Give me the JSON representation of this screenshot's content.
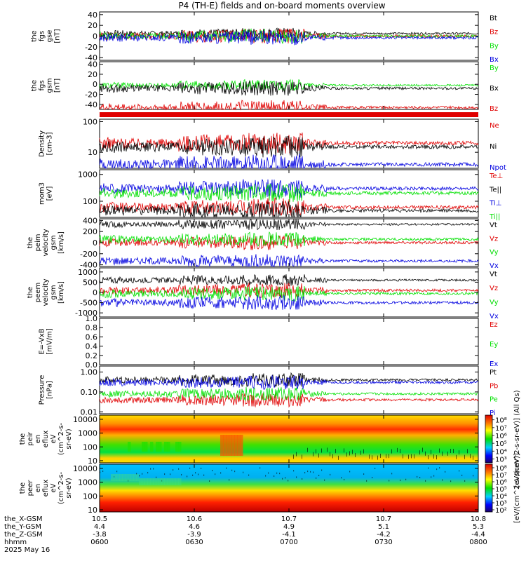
{
  "title": "P4 (TH-E) fields and on-board moments overview",
  "date_label": "2025 May 16",
  "colors": {
    "black": "#000000",
    "red": "#e00000",
    "green": "#00e000",
    "blue": "#0000e0"
  },
  "chart_data": [
    {
      "type": "line",
      "ylabel": [
        "the",
        "fgs",
        "gse",
        "[nT]"
      ],
      "ylim": [
        -45,
        45
      ],
      "ticks": [
        "40",
        "20",
        "0",
        "-20",
        "-40"
      ],
      "tick_values": [
        40,
        20,
        0,
        -20,
        -40
      ],
      "series": [
        {
          "name": "Bt",
          "color": "black",
          "base": 5
        },
        {
          "name": "Bz",
          "color": "red",
          "base": 0
        },
        {
          "name": "By",
          "color": "green",
          "base": 0
        },
        {
          "name": "Bx",
          "color": "blue",
          "base": -3
        }
      ]
    },
    {
      "type": "line",
      "ylabel": [
        "the",
        "fgs",
        "gsm",
        "[nT]"
      ],
      "ylim": [
        -50,
        45
      ],
      "ticks": [
        "40",
        "20",
        "0",
        "-20",
        "-40"
      ],
      "tick_values": [
        40,
        20,
        0,
        -20,
        -40
      ],
      "series": [
        {
          "name": "By",
          "color": "green",
          "base": -2
        },
        {
          "name": "Bx",
          "color": "black",
          "base": -8
        },
        {
          "name": "Bz",
          "color": "red",
          "base": -46
        }
      ]
    },
    {
      "type": "line",
      "ylabel": [
        "Density",
        "[cm-3]"
      ],
      "scale": "log",
      "ylim": [
        3,
        120
      ],
      "ticks": [
        "100",
        "10"
      ],
      "tick_values": [
        100,
        10
      ],
      "series": [
        {
          "name": "Ne",
          "color": "red",
          "base": 20
        },
        {
          "name": "Ni",
          "color": "black",
          "base": 15
        },
        {
          "name": "Npot",
          "color": "blue",
          "base": 4
        }
      ]
    },
    {
      "type": "line",
      "ylabel": [
        "mom3",
        "[eV]"
      ],
      "scale": "log",
      "ylim": [
        25,
        1500
      ],
      "ticks": [
        "1000",
        "100"
      ],
      "tick_values": [
        1000,
        100
      ],
      "series": [
        {
          "name": "Te⊥",
          "color": "red",
          "base": 60
        },
        {
          "name": "Te||",
          "color": "black",
          "base": 45
        },
        {
          "name": "Ti⊥",
          "color": "blue",
          "base": 300
        },
        {
          "name": "Ti||",
          "color": "green",
          "base": 200
        }
      ]
    },
    {
      "type": "line",
      "ylabel": [
        "the",
        "peim",
        "velocity",
        "gsm",
        "[km/s]"
      ],
      "ylim": [
        -430,
        430
      ],
      "ticks": [
        "400",
        "200",
        "0",
        "-200",
        "-400"
      ],
      "tick_values": [
        400,
        200,
        0,
        -200,
        -400
      ],
      "series": [
        {
          "name": "Vt",
          "color": "black",
          "base": 330
        },
        {
          "name": "Vz",
          "color": "red",
          "base": 0
        },
        {
          "name": "Vy",
          "color": "green",
          "base": 60
        },
        {
          "name": "Vx",
          "color": "blue",
          "base": -330
        }
      ]
    },
    {
      "type": "line",
      "ylabel": [
        "the",
        "peem",
        "velocity",
        "gsm",
        "[km/s]"
      ],
      "ylim": [
        -1200,
        1200
      ],
      "ticks": [
        "1000",
        "500",
        "0",
        "-500",
        "-1000"
      ],
      "tick_values": [
        1000,
        500,
        0,
        -500,
        -1000
      ],
      "series": [
        {
          "name": "Vt",
          "color": "black",
          "base": 600
        },
        {
          "name": "Vz",
          "color": "red",
          "base": 100
        },
        {
          "name": "Vy",
          "color": "green",
          "base": -50
        },
        {
          "name": "Vx",
          "color": "blue",
          "base": -500
        }
      ]
    },
    {
      "type": "line",
      "ylabel": [
        "E=-VxB",
        "[mV/m]"
      ],
      "ylim": [
        0,
        1
      ],
      "ticks": [
        "1.0",
        "0.8",
        "0.6",
        "0.4",
        "0.2",
        "0.0"
      ],
      "tick_values": [
        1,
        0.8,
        0.6,
        0.4,
        0.2,
        0
      ],
      "series": [
        {
          "name": "Ez",
          "color": "red",
          "base": null
        },
        {
          "name": "Ey",
          "color": "green",
          "base": null
        },
        {
          "name": "Ex",
          "color": "blue",
          "base": null
        }
      ]
    },
    {
      "type": "line",
      "ylabel": [
        "Pressure",
        "[nPa]"
      ],
      "scale": "log",
      "ylim": [
        0.008,
        2
      ],
      "ticks": [
        "1.00",
        "0.10",
        "0.01"
      ],
      "tick_values": [
        1,
        0.1,
        0.01
      ],
      "series": [
        {
          "name": "Pt",
          "color": "black",
          "base": 0.4
        },
        {
          "name": "Pb",
          "color": "red",
          "base": 0.04
        },
        {
          "name": "Pe",
          "color": "green",
          "base": 0.08
        },
        {
          "name": "Pi",
          "color": "blue",
          "base": 0.3
        }
      ]
    },
    {
      "type": "heatmap",
      "ylabel": [
        "the",
        "peir",
        "en",
        "eflux",
        "eV",
        "(cm^2-s-",
        "sr-eV)"
      ],
      "scale": "log",
      "ylim": [
        7,
        20000
      ],
      "ticks": [
        "10000",
        "1000",
        "100",
        "10"
      ],
      "tick_values": [
        10000,
        1000,
        100,
        10
      ]
    },
    {
      "type": "heatmap",
      "ylabel": [
        "the",
        "peer",
        "en",
        "eflux",
        "eV",
        "(cm^2-s-",
        "sr-eV)"
      ],
      "scale": "log",
      "ylim": [
        7,
        20000
      ],
      "ticks": [
        "10000",
        "1000",
        "100",
        "10"
      ],
      "tick_values": [
        10000,
        1000,
        100,
        10
      ]
    }
  ],
  "colorbar1": {
    "ticks": [
      "10⁸",
      "10⁷",
      "10⁶",
      "10⁵",
      "10⁴",
      "10³"
    ],
    "tick_values": [
      8,
      7,
      6,
      5,
      4,
      3
    ],
    "range": [
      2.5,
      8.6
    ]
  },
  "colorbar2": {
    "ticks": [
      "10⁸",
      "10⁷",
      "10⁶",
      "10⁵",
      "10⁴",
      "10³",
      "10²"
    ],
    "tick_values": [
      8,
      7,
      6,
      5,
      4,
      3,
      2
    ],
    "range": [
      1.7,
      8.5
    ]
  },
  "colorbar_label": "[eV/(cm^2-s-sr-eV)] (All Qs)",
  "colorbar_label2": "[eV/(cm^2-s-sr-eV)]",
  "xaxis": {
    "range": [
      0,
      120
    ],
    "tick_values": [
      0,
      30,
      60,
      90,
      120
    ],
    "rows": [
      {
        "label": "the_X-GSM",
        "values": [
          "10.5",
          "10.6",
          "10.7",
          "10.7",
          "10.8"
        ]
      },
      {
        "label": "the_Y-GSM",
        "values": [
          "4.4",
          "4.6",
          "4.9",
          "5.1",
          "5.3"
        ]
      },
      {
        "label": "the_Z-GSM",
        "values": [
          "-3.8",
          "-3.9",
          "-4.1",
          "-4.2",
          "-4.4"
        ]
      },
      {
        "label": "hhmm",
        "values": [
          "0600",
          "0630",
          "0700",
          "0730",
          "0800"
        ]
      }
    ]
  }
}
